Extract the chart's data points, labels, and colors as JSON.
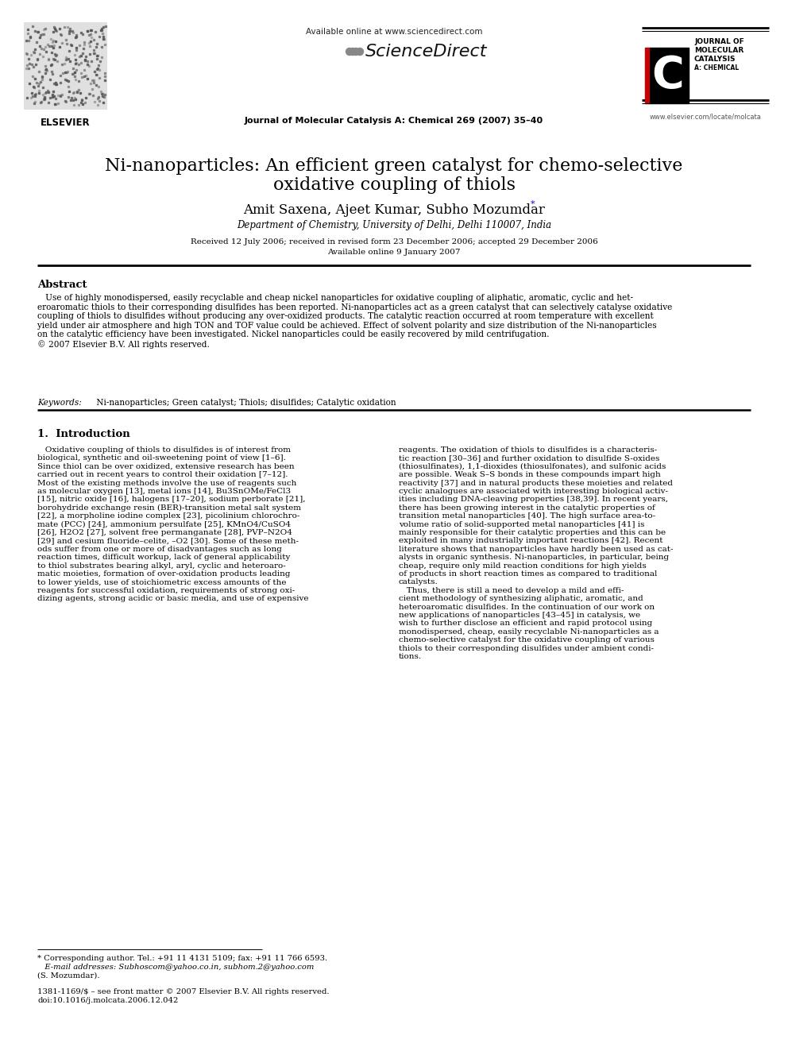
{
  "bg_color": "#ffffff",
  "title_line1": "Ni-nanoparticles: An efficient green catalyst for chemo-selective",
  "title_line2": "oxidative coupling of thiols",
  "authors": "Amit Saxena, Ajeet Kumar, Subho Mozumdar",
  "affiliation": "Department of Chemistry, University of Delhi, Delhi 110007, India",
  "received": "Received 12 July 2006; received in revised form 23 December 2006; accepted 29 December 2006",
  "available_date": "Available online 9 January 2007",
  "available_online_header": "Available online at www.sciencedirect.com",
  "sciencedirect_text": "ScienceDirect",
  "journal_header": "Journal of Molecular Catalysis A: Chemical 269 (2007) 35–40",
  "journal_right1": "JOURNAL OF",
  "journal_right2": "MOLECULAR",
  "journal_right3": "CATALYSIS",
  "journal_right4": "A: CHEMICAL",
  "elsevier_url": "www.elsevier.com/locate/molcata",
  "elsevier_label": "ELSEVIER",
  "abstract_title": "Abstract",
  "abstract_body": "   Use of highly monodispersed, easily recyclable and cheap nickel nanoparticles for oxidative coupling of aliphatic, aromatic, cyclic and het-\neroaromatic thiols to their corresponding disulfides has been reported. Ni-nanoparticles act as a green catalyst that can selectively catalyse oxidative\ncoupling of thiols to disulfides without producing any over-oxidized products. The catalytic reaction occurred at room temperature with excellent\nyield under air atmosphere and high TON and TOF value could be achieved. Effect of solvent polarity and size distribution of the Ni-nanoparticles\non the catalytic efficiency have been investigated. Nickel nanoparticles could be easily recovered by mild centrifugation.\n© 2007 Elsevier B.V. All rights reserved.",
  "keywords_label": "Keywords: ",
  "keywords_text": " Ni-nanoparticles; Green catalyst; Thiols; disulfides; Catalytic oxidation",
  "section1_title": "1.  Introduction",
  "intro_col1_line1": "   Oxidative coupling of thiols to disulfides is of interest from",
  "intro_col1": "   Oxidative coupling of thiols to disulfides is of interest from\nbiological, synthetic and oil-sweetening point of view [1–6].\nSince thiol can be over oxidized, extensive research has been\ncarried out in recent years to control their oxidation [7–12].\nMost of the existing methods involve the use of reagents such\nas molecular oxygen [13], metal ions [14], Bu3SnOMe/FeCl3\n[15], nitric oxide [16], halogens [17–20], sodium perborate [21],\nborohydride exchange resin (BER)-transition metal salt system\n[22], a morpholine iodine complex [23], picolinium chlorochro-\nmate (PCC) [24], ammonium persulfate [25], KMnO4/CuSO4\n[26], H2O2 [27], solvent free permanganate [28], PVP–N2O4\n[29] and cesium fluoride–celite, –O2 [30]. Some of these meth-\nods suffer from one or more of disadvantages such as long\nreaction times, difficult workup, lack of general applicability\nto thiol substrates bearing alkyl, aryl, cyclic and heteroaro-\nmatic moieties, formation of over-oxidation products leading\nto lower yields, use of stoichiometric excess amounts of the\nreagents for successful oxidation, requirements of strong oxi-\ndizing agents, strong acidic or basic media, and use of expensive",
  "intro_col2": "reagents. The oxidation of thiols to disulfides is a characteris-\ntic reaction [30–36] and further oxidation to disulfide S-oxides\n(thiosulfinates), 1,1-dioxides (thiosulfonates), and sulfonic acids\nare possible. Weak S–S bonds in these compounds impart high\nreactivity [37] and in natural products these moieties and related\ncyclic analogues are associated with interesting biological activ-\nities including DNA-cleaving properties [38,39]. In recent years,\nthere has been growing interest in the catalytic properties of\ntransition metal nanoparticles [40]. The high surface area-to-\nvolume ratio of solid-supported metal nanoparticles [41] is\nmainly responsible for their catalytic properties and this can be\nexploited in many industrially important reactions [42]. Recent\nliterature shows that nanoparticles have hardly been used as cat-\nalysts in organic synthesis. Ni-nanoparticles, in particular, being\ncheap, require only mild reaction conditions for high yields\nof products in short reaction times as compared to traditional\ncatalysts.\n   Thus, there is still a need to develop a mild and effi-\ncient methodology of synthesizing aliphatic, aromatic, and\nheteroaromatic disulfides. In the continuation of our work on\nnew applications of nanoparticles [43–45] in catalysis, we\nwish to further disclose an efficient and rapid protocol using\nmonodispersed, cheap, easily recyclable Ni-nanoparticles as a\nchemo-selective catalyst for the oxidative coupling of various\nthiols to their corresponding disulfides under ambient condi-\ntions.",
  "footnote1": "* Corresponding author. Tel.: +91 11 4131 5109; fax: +91 11 766 6593.",
  "footnote2": "   E-mail addresses: Subhoscom@yahoo.co.in, subhom.2@yahoo.com",
  "footnote3": "(S. Mozumdar).",
  "footnote4": "1381-1169/$ – see front matter © 2007 Elsevier B.V. All rights reserved.",
  "footnote5": "doi:10.1016/j.molcata.2006.12.042"
}
